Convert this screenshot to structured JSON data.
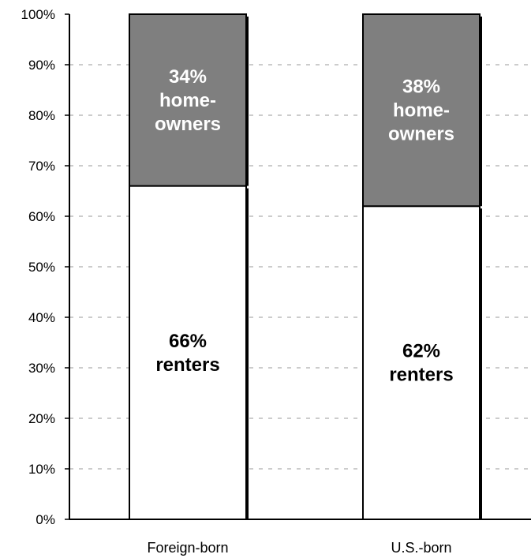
{
  "chart_data": {
    "type": "bar",
    "stacked": true,
    "percent_stacked": true,
    "categories": [
      "Foreign-born",
      "U.S.-born"
    ],
    "series": [
      {
        "values": [
          66,
          62
        ],
        "labels": [
          [
            "66%",
            "renters"
          ],
          [
            "62%",
            "renters"
          ]
        ],
        "color": "#ffffff",
        "label_color": "#000000"
      },
      {
        "values": [
          34,
          38
        ],
        "labels": [
          [
            "34%",
            "home-",
            "owners"
          ],
          [
            "38%",
            "home-",
            "owners"
          ]
        ],
        "color": "#7f7f7f",
        "label_color": "#ffffff"
      }
    ],
    "yticks": [
      "0%",
      "10%",
      "20%",
      "30%",
      "40%",
      "50%",
      "60%",
      "70%",
      "80%",
      "90%",
      "100%"
    ],
    "ylim": [
      0,
      100
    ],
    "grid": true,
    "legend": "none",
    "title": "",
    "xlabel": "",
    "ylabel": ""
  }
}
